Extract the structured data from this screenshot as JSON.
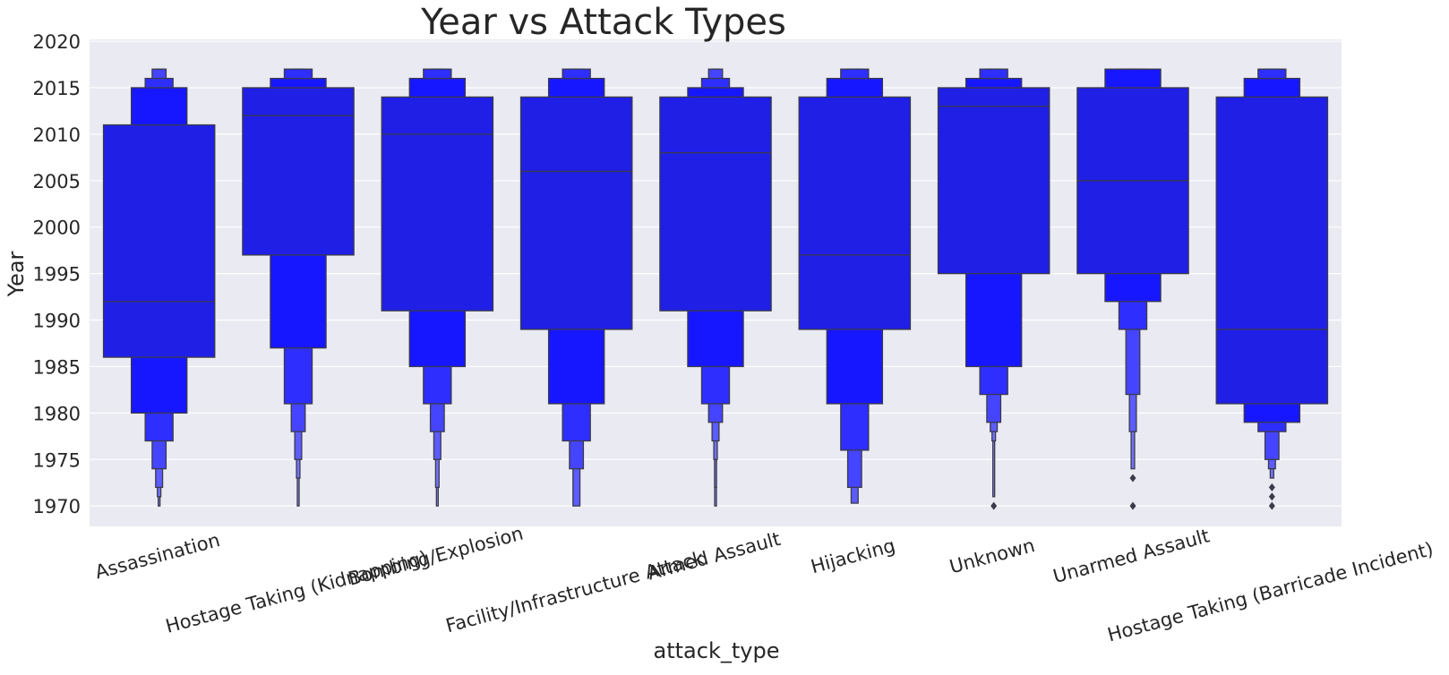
{
  "chart_data": {
    "type": "boxen",
    "title": "Year vs Attack Types",
    "xlabel": "attack_type",
    "ylabel": "Year",
    "ylim": [
      1967.8,
      2020.2
    ],
    "yticks": [
      1970,
      1975,
      1980,
      1985,
      1990,
      1995,
      2000,
      2005,
      2010,
      2015,
      2020
    ],
    "grid": true,
    "color": "#0000ff",
    "background": "#eaeaf2",
    "categories": [
      "Assassination",
      "Hostage Taking (Kidnapping)",
      "Bombing/Explosion",
      "Facility/Infrastructure Attack",
      "Armed Assault",
      "Hijacking",
      "Unknown",
      "Unarmed Assault",
      "Hostage Taking (Barricade Incident)"
    ],
    "series": [
      {
        "name": "Assassination",
        "median": 1992,
        "levels": [
          [
            1986,
            2011
          ],
          [
            1980,
            2015
          ],
          [
            1977,
            2016
          ],
          [
            1974,
            2017
          ],
          [
            1972,
            2017
          ],
          [
            1971,
            2017
          ],
          [
            1970,
            2017
          ]
        ],
        "outliers": []
      },
      {
        "name": "Hostage Taking (Kidnapping)",
        "median": 2012,
        "levels": [
          [
            1997,
            2015
          ],
          [
            1987,
            2016
          ],
          [
            1981,
            2017
          ],
          [
            1978,
            2017
          ],
          [
            1975,
            2017
          ],
          [
            1973,
            2017
          ],
          [
            1970,
            2017
          ]
        ],
        "outliers": []
      },
      {
        "name": "Bombing/Explosion",
        "median": 2010,
        "levels": [
          [
            1991,
            2014
          ],
          [
            1985,
            2016
          ],
          [
            1981,
            2017
          ],
          [
            1978,
            2017
          ],
          [
            1975,
            2017
          ],
          [
            1972,
            2017
          ],
          [
            1970,
            2017
          ]
        ],
        "outliers": []
      },
      {
        "name": "Facility/Infrastructure Attack",
        "median": 2006,
        "levels": [
          [
            1989,
            2014
          ],
          [
            1981,
            2016
          ],
          [
            1977,
            2017
          ],
          [
            1974,
            2017
          ],
          [
            1970,
            2017
          ]
        ],
        "outliers": []
      },
      {
        "name": "Armed Assault",
        "median": 2008,
        "levels": [
          [
            1991,
            2014
          ],
          [
            1985,
            2015
          ],
          [
            1981,
            2016
          ],
          [
            1979,
            2017
          ],
          [
            1977,
            2017
          ],
          [
            1975,
            2017
          ],
          [
            1972,
            2017
          ],
          [
            1970,
            2017
          ]
        ],
        "outliers": []
      },
      {
        "name": "Hijacking",
        "median": 1997,
        "levels": [
          [
            1989,
            2014
          ],
          [
            1981,
            2016
          ],
          [
            1976,
            2017
          ],
          [
            1972,
            2017
          ],
          [
            1970.3,
            2017
          ]
        ],
        "outliers": []
      },
      {
        "name": "Unknown",
        "median": 2013,
        "levels": [
          [
            1995,
            2015
          ],
          [
            1985,
            2016
          ],
          [
            1982,
            2017
          ],
          [
            1979,
            2017
          ],
          [
            1978,
            2017
          ],
          [
            1977,
            2017
          ],
          [
            1971,
            2017
          ]
        ],
        "outliers": [
          1970
        ]
      },
      {
        "name": "Unarmed Assault",
        "median": 2005,
        "levels": [
          [
            1995,
            2015
          ],
          [
            1992,
            2017
          ],
          [
            1989,
            2017
          ],
          [
            1982,
            2017
          ],
          [
            1978,
            2017
          ],
          [
            1974,
            2017
          ]
        ],
        "outliers": [
          1973,
          1970
        ]
      },
      {
        "name": "Hostage Taking (Barricade Incident)",
        "median": 1989,
        "levels": [
          [
            1981,
            2014
          ],
          [
            1979,
            2016
          ],
          [
            1978,
            2017
          ],
          [
            1975,
            2017
          ],
          [
            1974,
            2017
          ],
          [
            1973,
            2017
          ]
        ],
        "outliers": [
          1972,
          1971,
          1970
        ]
      }
    ]
  }
}
